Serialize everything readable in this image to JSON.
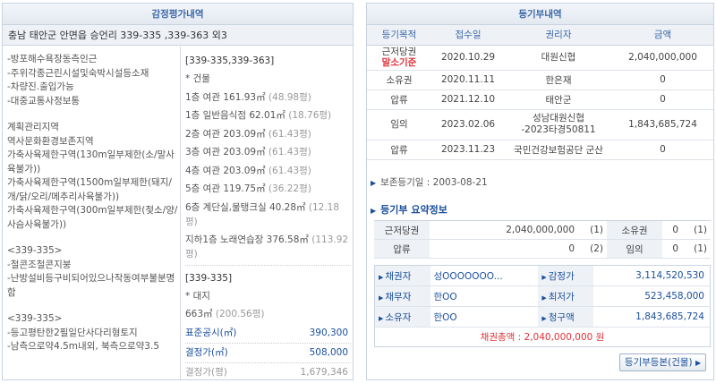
{
  "appraisal": {
    "title": "감정평가내역",
    "address": "충남 태안군 안면읍 승언리 339-335 ,339-363 외3",
    "notes": [
      "-방포해수욕장동측인근",
      "-주위각종근린시설및숙박시설등소재",
      "-차량진.출입가능",
      "-대중교통사정보통",
      "계획관리지역",
      "역사문화환경보존지역",
      "가축사육제한구역(130m일부제한(소/말사육불가))",
      "가축사육제한구역(1500m일부제한(돼지/개/닭/오리/메추리사육불가))",
      "가축사육제한구역(300m일부제한(젖소/양/사슴사육불가))",
      "<339-335>",
      "-철콘조철콘지붕",
      "-난방설비등구비되어있으나작동여부불분명함",
      "<339-335>",
      "-등고평탄한2필일단사다리형토지",
      "-남측으로약4.5m내외, 북측으로약3.5"
    ],
    "block1": {
      "lots": "[339-335,339-363]",
      "building_label": "* 건물",
      "floors": [
        {
          "name": "1층 여관 161.93㎡",
          "py": "(48.98평)"
        },
        {
          "name": "1층 일반음식점 62.01㎡",
          "py": "(18.76평)"
        },
        {
          "name": "2층 여관 203.09㎡",
          "py": "(61.43평)"
        },
        {
          "name": "3층 여관 203.09㎡",
          "py": "(61.43평)"
        },
        {
          "name": "4층 여관 203.09㎡",
          "py": "(61.43평)"
        },
        {
          "name": "5층 여관 119.75㎡",
          "py": "(36.22평)"
        }
      ],
      "floor6": "6층 계단실,물탱크실 40.28㎡",
      "floor6_py": "(12.18평)",
      "basement": "지하1층 노래연습장 376.58㎡",
      "basement_py": "(113.92평)"
    },
    "block2": {
      "lots": "[339-335]",
      "land_label": "* 대지",
      "area": "663㎡",
      "area_py": "(200.56평)",
      "prices": [
        {
          "label": "표준공시(㎡)",
          "value": "390,300"
        },
        {
          "label": "결정가(㎡)",
          "value": "508,000"
        },
        {
          "label": "결정가(평)",
          "value": "1,679,346"
        }
      ]
    }
  },
  "register": {
    "title": "등기부내역",
    "columns": [
      "등기목적",
      "접수일",
      "권리자",
      "금액"
    ],
    "rows": [
      {
        "purpose": "근저당권",
        "purpose_note": "말소기준",
        "date": "2020.10.29",
        "holder": "대원신협",
        "amount": "2,040,000,000"
      },
      {
        "purpose": "소유권",
        "date": "2020.11.11",
        "holder": "한은재",
        "amount": "0"
      },
      {
        "purpose": "압류",
        "date": "2021.12.10",
        "holder": "태안군",
        "amount": "0"
      },
      {
        "purpose": "임의",
        "date": "2023.02.06",
        "holder": "성남대원신협",
        "holder_note": "-2023타경50811",
        "amount": "1,843,685,724"
      },
      {
        "purpose": "압류",
        "date": "2023.11.23",
        "holder": "국민건강보험공단 군산",
        "amount": "0"
      }
    ],
    "preservation": "보존등기일 : 2003-08-21",
    "summary_title": "등기부 요약정보",
    "summary": [
      {
        "k1": "근저당권",
        "v1": "2,040,000,000",
        "c1": "(1)",
        "k2": "소유권",
        "v2": "0",
        "c2": "(1)"
      },
      {
        "k1": "압류",
        "v1": "0",
        "c1": "(2)",
        "k2": "임의",
        "v2": "0",
        "c2": "(1)"
      }
    ],
    "parties": [
      {
        "k1": "채권자",
        "v1": "성OOOOOOO...",
        "k2": "감정가",
        "v2": "3,114,520,530",
        "red": false
      },
      {
        "k1": "채무자",
        "v1": "한OO",
        "k2": "최저가",
        "v2": "523,458,000",
        "red": false
      },
      {
        "k1": "소유자",
        "v1": "한OO",
        "k2": "청구액",
        "v2": "1,843,685,724",
        "red": true
      }
    ],
    "total": "채권총액 : 2,040,000,000 원",
    "button": "등기부등본(건물)"
  },
  "colors": {
    "accent": "#3a67a8",
    "link": "#1a4f9c",
    "alert": "#e0333a",
    "header_bg": "#eef2f7"
  }
}
